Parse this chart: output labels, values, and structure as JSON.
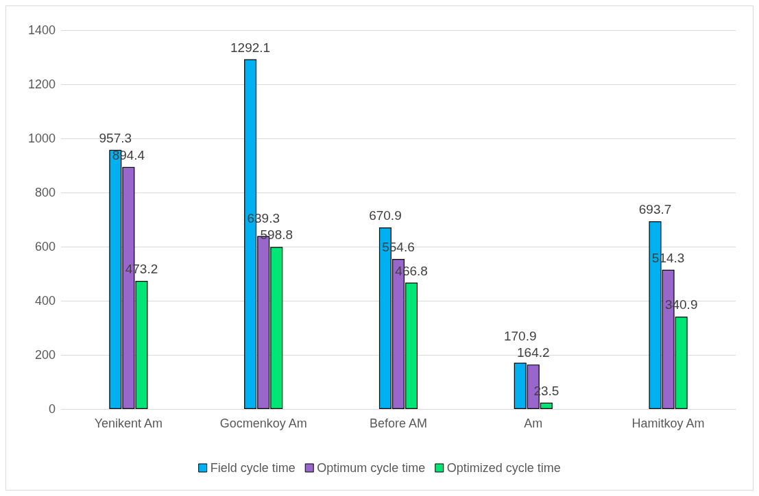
{
  "chart_data": {
    "type": "bar",
    "categories": [
      "Yenikent Am",
      "Gocmenkoy Am",
      "Before AM",
      "Am",
      "Hamitkoy Am"
    ],
    "series": [
      {
        "name": "Field cycle time",
        "color": "#00b0f0",
        "values": [
          957.3,
          1292.1,
          670.9,
          170.9,
          693.7
        ]
      },
      {
        "name": "Optimum cycle time",
        "color": "#9966cc",
        "values": [
          894.4,
          639.3,
          554.6,
          164.2,
          514.3
        ]
      },
      {
        "name": "Optimized cycle time",
        "color": "#00e676",
        "values": [
          473.2,
          598.8,
          466.8,
          23.5,
          340.9
        ]
      }
    ],
    "ylim": [
      0,
      1400
    ],
    "yticks": [
      0,
      200,
      400,
      600,
      800,
      1000,
      1200,
      1400
    ],
    "grid": "y",
    "legend": "bottom",
    "data_labels": true
  }
}
